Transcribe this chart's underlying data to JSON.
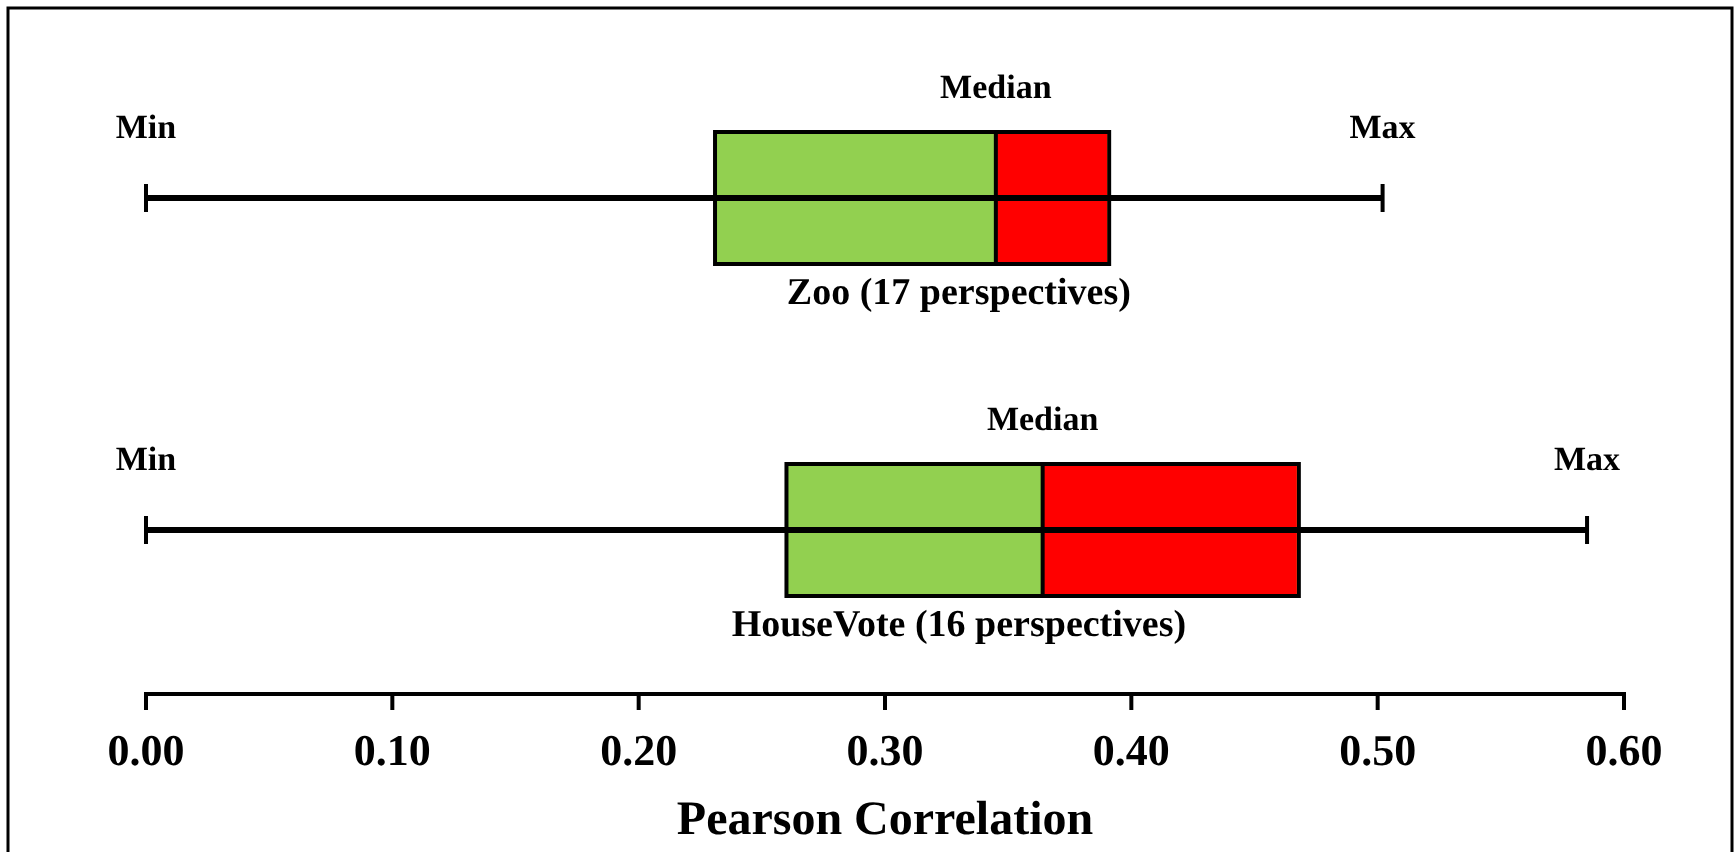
{
  "chart_data": {
    "type": "box",
    "orientation": "horizontal",
    "xlabel": "Pearson Correlation",
    "categories": [
      "Zoo (17 perspectives)",
      "HouseVote (16 perspectives)"
    ],
    "colors": [
      "#92d050",
      "#92d050"
    ],
    "color": "#ff0000",
    "boxes": [
      {
        "low": 0,
        "q1": 0.231,
        "median": 0.345,
        "q3": 0.391,
        "high": 0.502
      },
      {
        "low": 0,
        "q1": 0.26,
        "median": 0.364,
        "q3": 0.468,
        "high": 0.585
      }
    ],
    "xlim": [
      0,
      0.6
    ],
    "xticks": [
      {
        "value": 0,
        "label": "0.00"
      },
      {
        "value": 0.1,
        "label": "0.10"
      },
      {
        "value": 0.2,
        "label": "0.20"
      },
      {
        "value": 0.3,
        "label": "0.30"
      },
      {
        "value": 0.4,
        "label": "0.40"
      },
      {
        "value": 0.5,
        "label": "0.50"
      },
      {
        "value": 0.6,
        "label": "0.60"
      }
    ],
    "tick_labels": "x",
    "grid": false,
    "annotations": [
      "Min",
      "Median",
      "Max",
      "Min",
      "Median",
      "Max"
    ]
  }
}
